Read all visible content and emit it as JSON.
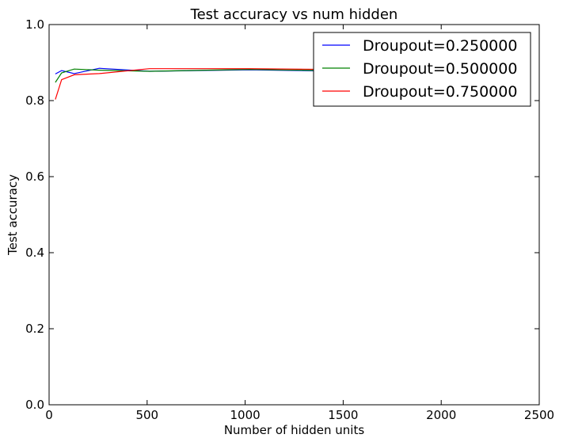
{
  "chart_data": {
    "type": "line",
    "title": "Test accuracy vs num hidden",
    "xlabel": "Number of hidden units",
    "ylabel": "Test accuracy",
    "xlim": [
      0,
      2500
    ],
    "ylim": [
      0.0,
      1.0
    ],
    "xticks": [
      0,
      500,
      1000,
      1500,
      2000,
      2500
    ],
    "xtick_labels": [
      "0",
      "500",
      "1000",
      "1500",
      "2000",
      "2500"
    ],
    "yticks": [
      0.0,
      0.2,
      0.4,
      0.6,
      0.8,
      1.0
    ],
    "ytick_labels": [
      "0.0",
      "0.2",
      "0.4",
      "0.6",
      "0.8",
      "1.0"
    ],
    "grid": false,
    "legend_position": "top-right",
    "series": [
      {
        "name": "Droupout=0.250000",
        "color": "#0000ff",
        "x": [
          32,
          64,
          96,
          128,
          256,
          512,
          1024,
          1400
        ],
        "y": [
          0.87,
          0.879,
          0.875,
          0.871,
          0.885,
          0.877,
          0.881,
          0.878
        ]
      },
      {
        "name": "Droupout=0.500000",
        "color": "#008000",
        "x": [
          32,
          64,
          96,
          128,
          256,
          512,
          1024,
          1400
        ],
        "y": [
          0.848,
          0.873,
          0.878,
          0.883,
          0.88,
          0.877,
          0.882,
          0.879
        ]
      },
      {
        "name": "Droupout=0.750000",
        "color": "#ff0000",
        "x": [
          32,
          64,
          128,
          256,
          512,
          1024,
          1400
        ],
        "y": [
          0.803,
          0.855,
          0.868,
          0.871,
          0.884,
          0.884,
          0.882
        ]
      }
    ]
  }
}
